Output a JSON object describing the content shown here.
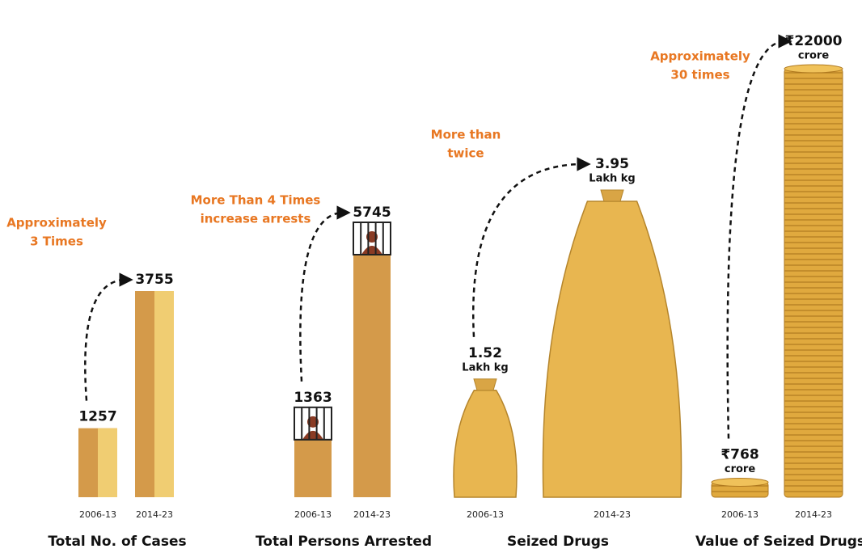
{
  "chart_data": [
    {
      "type": "bar",
      "title": "Total No. of Cases",
      "annotation": [
        "Approximately",
        "3 Times"
      ],
      "categories": [
        "2006-13",
        "2014-23"
      ],
      "values": [
        1257,
        3755
      ],
      "color": "#d49a4a"
    },
    {
      "type": "bar",
      "title": "Total Persons Arrested",
      "annotation": [
        "More Than 4 Times",
        "increase arrests"
      ],
      "categories": [
        "2006-13",
        "2014-23"
      ],
      "values": [
        1363,
        5745
      ],
      "color": "#d49a4a"
    },
    {
      "type": "bar",
      "title": "Seized Drugs",
      "annotation": [
        "More than",
        "twice"
      ],
      "categories": [
        "2006-13",
        "2014-23"
      ],
      "values": [
        1.52,
        3.95
      ],
      "unit": "Lakh kg",
      "color": "#e8b650"
    },
    {
      "type": "bar",
      "title": "Value of Seized Drugs",
      "annotation": [
        "Approximately",
        "30 times"
      ],
      "categories": [
        "2006-13",
        "2014-23"
      ],
      "values": [
        768,
        22000
      ],
      "value_labels": [
        "₹768",
        "₹22000"
      ],
      "unit": "crore",
      "color": "#e0a93e"
    }
  ]
}
